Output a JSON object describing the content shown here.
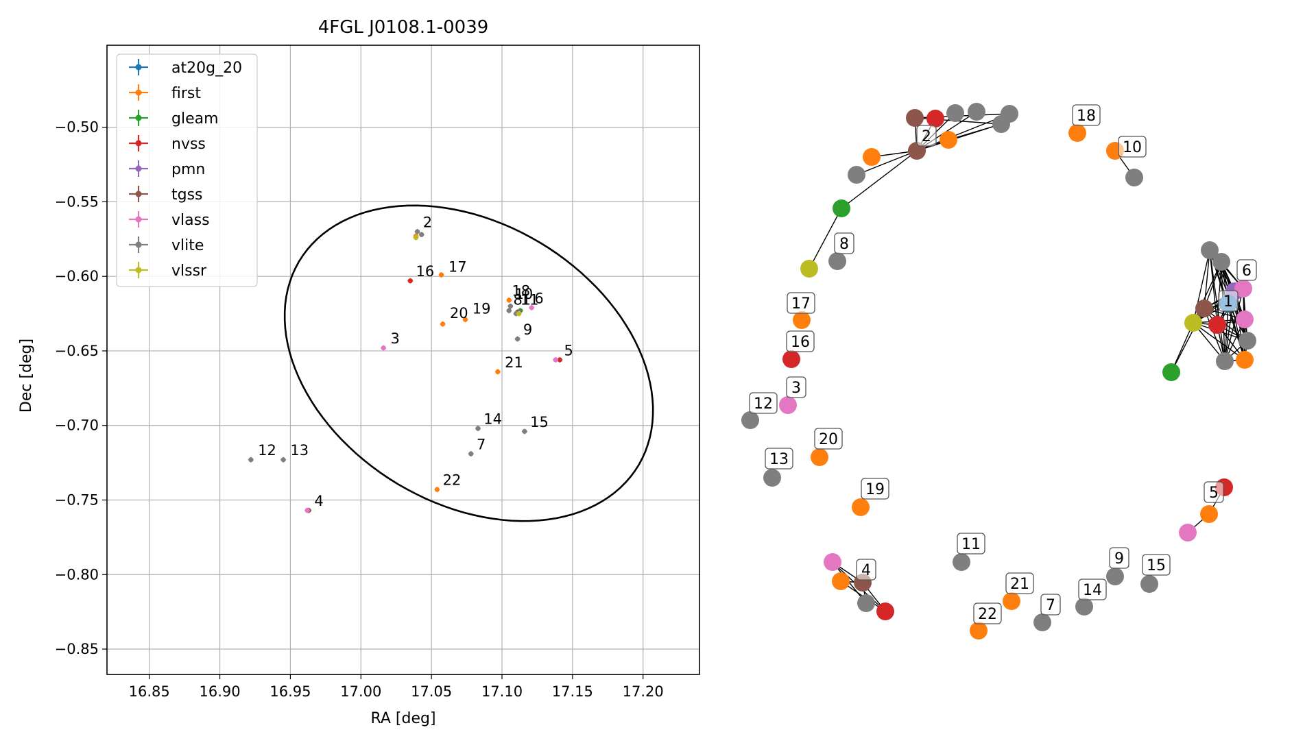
{
  "chart_data": [
    {
      "type": "scatter",
      "title": "4FGL J0108.1-0039",
      "xlabel": "RA [deg]",
      "ylabel": "Dec [deg]",
      "xlim": [
        16.82,
        17.24
      ],
      "ylim": [
        -0.867,
        -0.445
      ],
      "xticks": [
        16.85,
        16.9,
        16.95,
        17.0,
        17.05,
        17.1,
        17.15,
        17.2
      ],
      "xtick_labels": [
        "16.85",
        "16.90",
        "16.95",
        "17.00",
        "17.05",
        "17.10",
        "17.15",
        "17.20"
      ],
      "yticks": [
        -0.85,
        -0.8,
        -0.75,
        -0.7,
        -0.65,
        -0.6,
        -0.55,
        -0.5
      ],
      "ytick_labels": [
        "−0.85",
        "−0.80",
        "−0.75",
        "−0.70",
        "−0.65",
        "−0.60",
        "−0.55",
        "−0.50"
      ],
      "grid": true,
      "legend_position": "top-left",
      "series": [
        {
          "name": "at20g_20",
          "color": "#1f77b4",
          "points": [
            [
              17.112,
              -0.624
            ]
          ]
        },
        {
          "name": "first",
          "color": "#ff7f0e",
          "points": [
            [
              17.039,
              -0.573
            ],
            [
              17.057,
              -0.599
            ],
            [
              17.105,
              -0.616
            ],
            [
              17.058,
              -0.632
            ],
            [
              17.074,
              -0.629
            ],
            [
              17.097,
              -0.664
            ],
            [
              17.054,
              -0.743
            ],
            [
              17.112,
              -0.624
            ]
          ]
        },
        {
          "name": "gleam",
          "color": "#2ca02c",
          "points": [
            [
              17.113,
              -0.623
            ]
          ]
        },
        {
          "name": "nvss",
          "color": "#d62728",
          "points": [
            [
              17.035,
              -0.603
            ],
            [
              17.141,
              -0.656
            ],
            [
              17.112,
              -0.624
            ]
          ]
        },
        {
          "name": "pmn",
          "color": "#9467bd",
          "points": [
            [
              17.112,
              -0.624
            ]
          ]
        },
        {
          "name": "tgss",
          "color": "#8c564b",
          "points": [
            [
              16.963,
              -0.757
            ],
            [
              17.111,
              -0.624
            ]
          ]
        },
        {
          "name": "vlass",
          "color": "#e377c2",
          "points": [
            [
              17.016,
              -0.648
            ],
            [
              17.121,
              -0.621
            ],
            [
              17.138,
              -0.656
            ],
            [
              16.962,
              -0.757
            ]
          ]
        },
        {
          "name": "vlite",
          "color": "#7f7f7f",
          "points": [
            [
              17.04,
              -0.57
            ],
            [
              17.043,
              -0.572
            ],
            [
              17.106,
              -0.62
            ],
            [
              17.105,
              -0.623
            ],
            [
              17.111,
              -0.642
            ],
            [
              16.922,
              -0.723
            ],
            [
              16.945,
              -0.723
            ],
            [
              17.083,
              -0.702
            ],
            [
              17.116,
              -0.704
            ],
            [
              17.078,
              -0.719
            ],
            [
              17.11,
              -0.625
            ]
          ]
        },
        {
          "name": "vlssr",
          "color": "#bcbd22",
          "points": [
            [
              17.039,
              -0.574
            ],
            [
              17.112,
              -0.625
            ]
          ]
        }
      ],
      "annotations": [
        {
          "text": "2",
          "x": 17.044,
          "y": -0.567
        },
        {
          "text": "16",
          "x": 17.039,
          "y": -0.6
        },
        {
          "text": "17",
          "x": 17.062,
          "y": -0.597
        },
        {
          "text": "18",
          "x": 17.107,
          "y": -0.613
        },
        {
          "text": "10",
          "x": 17.109,
          "y": -0.615
        },
        {
          "text": "8",
          "x": 17.108,
          "y": -0.619
        },
        {
          "text": "11",
          "x": 17.113,
          "y": -0.619
        },
        {
          "text": "1",
          "x": 17.114,
          "y": -0.619
        },
        {
          "text": "6",
          "x": 17.123,
          "y": -0.618
        },
        {
          "text": "20",
          "x": 17.063,
          "y": -0.628
        },
        {
          "text": "19",
          "x": 17.079,
          "y": -0.625
        },
        {
          "text": "9",
          "x": 17.115,
          "y": -0.639
        },
        {
          "text": "3",
          "x": 17.021,
          "y": -0.645
        },
        {
          "text": "5",
          "x": 17.144,
          "y": -0.653
        },
        {
          "text": "21",
          "x": 17.102,
          "y": -0.661
        },
        {
          "text": "14",
          "x": 17.087,
          "y": -0.699
        },
        {
          "text": "15",
          "x": 17.12,
          "y": -0.701
        },
        {
          "text": "7",
          "x": 17.082,
          "y": -0.716
        },
        {
          "text": "12",
          "x": 16.927,
          "y": -0.72
        },
        {
          "text": "13",
          "x": 16.95,
          "y": -0.72
        },
        {
          "text": "22",
          "x": 17.058,
          "y": -0.74
        },
        {
          "text": "4",
          "x": 16.967,
          "y": -0.754
        }
      ],
      "ellipse": {
        "center": [
          17.0765,
          -0.6583
        ],
        "semi_axes": [
          0.1385,
          0.0952
        ],
        "angle_deg": -27.35
      }
    },
    {
      "type": "network",
      "title": "",
      "labels": [
        {
          "text": "18"
        },
        {
          "text": "10"
        },
        {
          "text": "2"
        },
        {
          "text": "8"
        },
        {
          "text": "6"
        },
        {
          "text": "1"
        },
        {
          "text": "17"
        },
        {
          "text": "16"
        },
        {
          "text": "3"
        },
        {
          "text": "12"
        },
        {
          "text": "20"
        },
        {
          "text": "13"
        },
        {
          "text": "19"
        },
        {
          "text": "5"
        },
        {
          "text": "11"
        },
        {
          "text": "4"
        },
        {
          "text": "9"
        },
        {
          "text": "15"
        },
        {
          "text": "21"
        },
        {
          "text": "14"
        },
        {
          "text": "7"
        },
        {
          "text": "22"
        }
      ]
    }
  ]
}
